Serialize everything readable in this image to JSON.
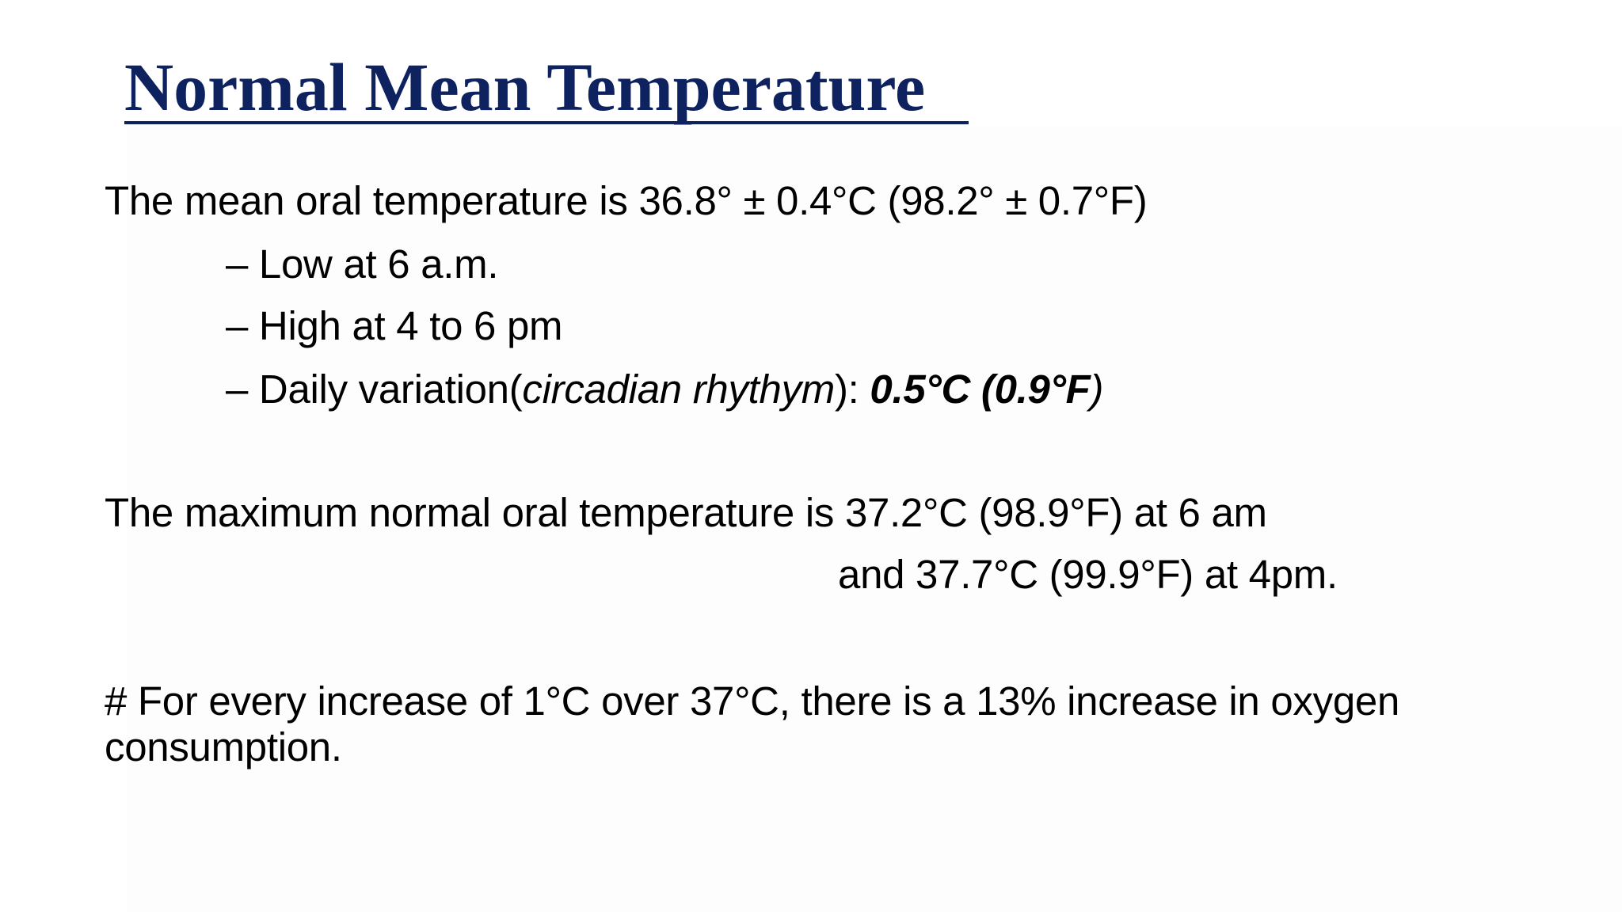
{
  "slide": {
    "title": "Normal Mean Temperature",
    "mean_line": "The mean oral temperature is 36.8° ± 0.4°C  (98.2°  ± 0.7°F)",
    "bullets": {
      "low": "– Low at 6 a.m.",
      "high": "– High at 4 to 6 pm",
      "variation_prefix": "– Daily variation(",
      "variation_term": "circadian rhythym",
      "variation_colon": "): ",
      "variation_value": "0.5°C (0.9°F",
      "variation_close": ")"
    },
    "max_line_1": "The maximum normal oral temperature is 37.2°C (98.9°F) at 6 am",
    "max_line_2": "and 37.7°C (99.9°F) at 4pm.",
    "oxygen_line_1": "# For every increase of 1°C over 37°C, there is a 13% increase in oxygen",
    "oxygen_line_2": "consumption."
  },
  "colors": {
    "title": "#0e2260",
    "text": "#000000",
    "background": "#ffffff"
  }
}
